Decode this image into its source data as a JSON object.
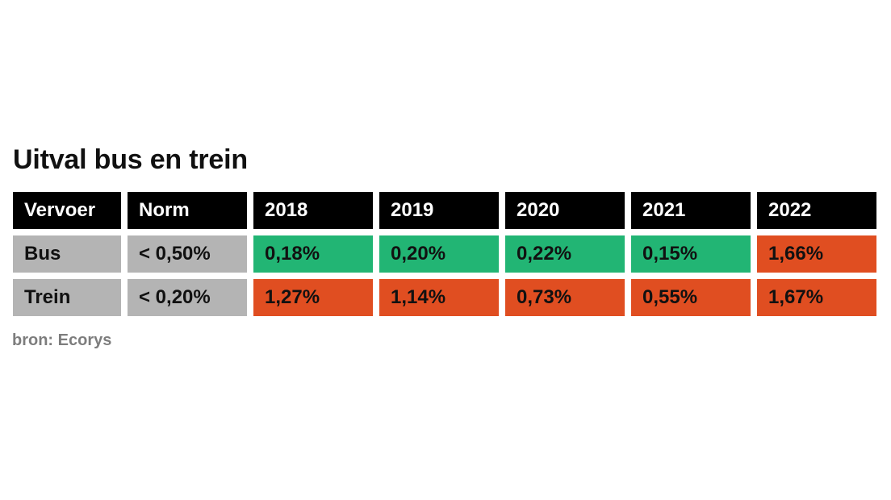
{
  "title": "Uitval bus en trein",
  "source": "bron: Ecorys",
  "colors": {
    "header": "#000000",
    "label": "#b4b4b4",
    "good": "#22b574",
    "bad": "#e04e21"
  },
  "chart_data": {
    "type": "table",
    "title": "Uitval bus en trein",
    "columns": [
      "Vervoer",
      "Norm",
      "2018",
      "2019",
      "2020",
      "2021",
      "2022"
    ],
    "rows": [
      {
        "vervoer": "Bus",
        "norm": "< 0,50%",
        "values": [
          "0,18%",
          "0,20%",
          "0,22%",
          "0,15%",
          "1,66%"
        ],
        "status": [
          "good",
          "good",
          "good",
          "good",
          "bad"
        ]
      },
      {
        "vervoer": "Trein",
        "norm": "< 0,20%",
        "values": [
          "1,27%",
          "1,14%",
          "0,73%",
          "0,55%",
          "1,67%"
        ],
        "status": [
          "bad",
          "bad",
          "bad",
          "bad",
          "bad"
        ]
      }
    ]
  }
}
